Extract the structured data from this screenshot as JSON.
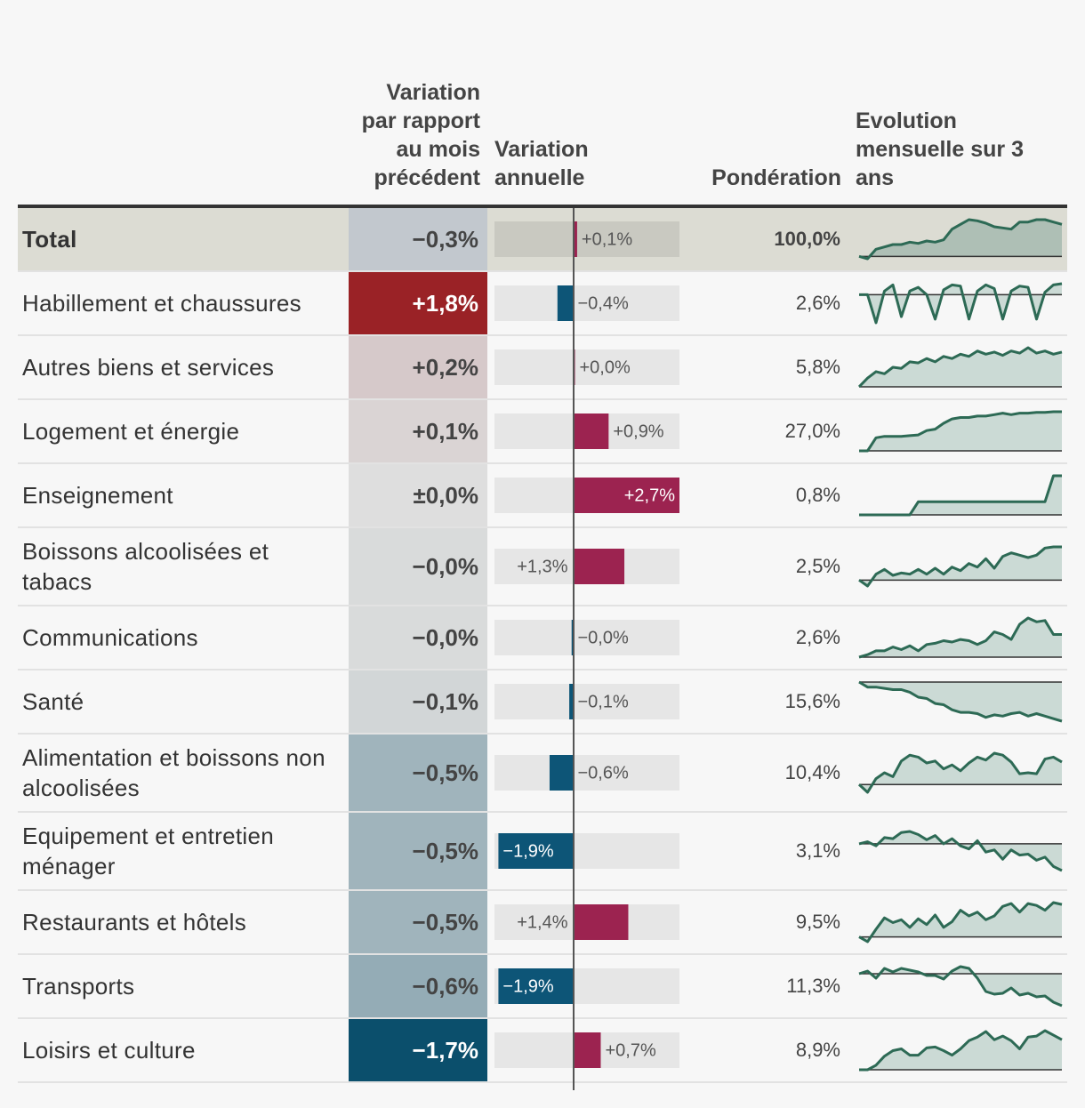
{
  "headers": {
    "monthly": "Variation par rapport au mois précédent",
    "annual": "Variation annuelle",
    "weight": "Pondération",
    "trend": "Evolution mensuelle sur 3 ans"
  },
  "annual_xlim": [
    -2,
    2.7
  ],
  "rows": [
    {
      "label": "Total",
      "monthly": -0.3,
      "monthly_label": "−0,3%",
      "annual": 0.1,
      "annual_label": "+0,1%",
      "weight": 100.0,
      "weight_label": "100,0%",
      "trend": [
        0,
        -0.2,
        0.6,
        0.8,
        1,
        1,
        1.2,
        1.1,
        1.3,
        1.2,
        1.4,
        2.3,
        2.7,
        3.1,
        3,
        2.8,
        2.5,
        2.4,
        2.3,
        2.9,
        2.9,
        3.1,
        3.1,
        2.9,
        2.7
      ]
    },
    {
      "label": "Habillement et chaussures",
      "monthly": 1.8,
      "monthly_label": "+1,8%",
      "annual": -0.4,
      "annual_label": "−0,4%",
      "weight": 2.6,
      "weight_label": "2,6%",
      "trend": [
        0,
        0,
        -2.3,
        0.3,
        0.8,
        -1.8,
        0.3,
        0.6,
        0,
        -2,
        0.4,
        0.8,
        0.7,
        -2,
        0.3,
        0.8,
        0.5,
        -2,
        0.3,
        0.7,
        0.6,
        -2,
        0.2,
        0.8,
        0.9
      ]
    },
    {
      "label": "Autres biens et services",
      "monthly": 0.2,
      "monthly_label": "+0,2%",
      "annual": 0.04,
      "annual_label": "+0,0%",
      "weight": 5.8,
      "weight_label": "5,8%",
      "trend": [
        0,
        0.8,
        1.4,
        1.2,
        1.8,
        1.7,
        2.3,
        2.2,
        2.6,
        2.3,
        2.8,
        2.6,
        3,
        2.8,
        3.3,
        3,
        3.2,
        2.9,
        3.3,
        3.1,
        3.6,
        3.1,
        3.3,
        3,
        3.2
      ]
    },
    {
      "label": "Logement et énergie",
      "monthly": 0.1,
      "monthly_label": "+0,1%",
      "annual": 0.9,
      "annual_label": "+0,9%",
      "weight": 27.0,
      "weight_label": "27,0%",
      "trend": [
        0,
        0,
        1.8,
        2,
        2,
        2,
        2.1,
        2.2,
        2.8,
        3,
        3.8,
        4.4,
        4.6,
        4.6,
        4.8,
        4.8,
        5,
        5.2,
        5,
        5.2,
        5.2,
        5.3,
        5.3,
        5.4,
        5.4
      ]
    },
    {
      "label": "Enseignement",
      "monthly": 0,
      "monthly_label": "±0,0%",
      "annual": 2.7,
      "annual_label": "+2,7%",
      "weight": 0.8,
      "weight_label": "0,8%",
      "trend": [
        0,
        0,
        0,
        0,
        0,
        0,
        0,
        1,
        1,
        1,
        1,
        1,
        1,
        1,
        1,
        1,
        1,
        1,
        1,
        1,
        1,
        1,
        1,
        3,
        3
      ]
    },
    {
      "label": "Boissons alcoolisées et tabacs",
      "monthly": -0.04,
      "monthly_label": "−0,0%",
      "annual": 1.3,
      "annual_label": "+1,3%",
      "weight": 2.5,
      "weight_label": "2,5%",
      "trend": [
        0,
        -0.5,
        0.5,
        0.9,
        0.4,
        0.6,
        0.5,
        0.9,
        0.5,
        1,
        0.5,
        1.1,
        0.8,
        1.4,
        1.1,
        1.8,
        1,
        2,
        2.3,
        2.1,
        1.9,
        2.1,
        2.7,
        2.8,
        2.8
      ]
    },
    {
      "label": "Communications",
      "monthly": -0.04,
      "monthly_label": "−0,0%",
      "annual": -0.04,
      "annual_label": "−0,0%",
      "weight": 2.6,
      "weight_label": "2,6%",
      "trend": [
        0,
        0.2,
        0.5,
        0.5,
        0.8,
        0.6,
        0.9,
        0.5,
        1,
        1.1,
        1.3,
        1.2,
        1.4,
        1.3,
        1,
        1.3,
        2,
        1.8,
        1.4,
        2.6,
        3.1,
        2.8,
        2.9,
        1.8,
        1.8
      ]
    },
    {
      "label": "Santé",
      "monthly": -0.1,
      "monthly_label": "−0,1%",
      "annual": -0.1,
      "annual_label": "−0,1%",
      "weight": 15.6,
      "weight_label": "15,6%",
      "trend": [
        0,
        -0.4,
        -0.4,
        -0.5,
        -0.6,
        -0.6,
        -0.8,
        -1.2,
        -1.3,
        -1.7,
        -1.8,
        -2.2,
        -2.4,
        -2.4,
        -2.5,
        -2.8,
        -2.6,
        -2.7,
        -2.5,
        -2.4,
        -2.7,
        -2.5,
        -2.7,
        -2.9,
        -3.1
      ]
    },
    {
      "label": "Alimentation et boissons non alcoolisées",
      "monthly": -0.5,
      "monthly_label": "−0,5%",
      "annual": -0.6,
      "annual_label": "−0,6%",
      "weight": 10.4,
      "weight_label": "10,4%",
      "trend": [
        0,
        -0.8,
        0.6,
        1.2,
        0.8,
        2.4,
        3,
        2.8,
        2.2,
        2.4,
        1.6,
        2,
        1.4,
        2.2,
        2.8,
        2.5,
        3.2,
        3,
        2.3,
        1.1,
        1.2,
        1.1,
        2.6,
        2.8,
        2.3
      ]
    },
    {
      "label": "Equipement et entretien ménager",
      "monthly": -0.5,
      "monthly_label": "−0,5%",
      "annual": -1.9,
      "annual_label": "−1,9%",
      "weight": 3.1,
      "weight_label": "3,1%",
      "trend": [
        0,
        0.2,
        -0.2,
        0.6,
        0.5,
        1.1,
        1.2,
        0.9,
        0.4,
        0.8,
        0,
        0.5,
        -0.2,
        -0.5,
        0.3,
        -0.8,
        -0.6,
        -1.5,
        -0.6,
        -1.1,
        -1,
        -1.6,
        -1.3,
        -2.2,
        -2.6
      ]
    },
    {
      "label": "Restaurants et hôtels",
      "monthly": -0.5,
      "monthly_label": "−0,5%",
      "annual": 1.4,
      "annual_label": "+1,4%",
      "weight": 9.5,
      "weight_label": "9,5%",
      "trend": [
        0,
        -0.5,
        0.8,
        2,
        1.5,
        1.8,
        1,
        1.9,
        1.3,
        2.3,
        1,
        1.6,
        2.8,
        2.2,
        2.6,
        1.8,
        2.2,
        3.2,
        3.5,
        2.6,
        3.5,
        3.3,
        2.8,
        3.6,
        3.4
      ]
    },
    {
      "label": "Transports",
      "monthly": -0.6,
      "monthly_label": "−0,6%",
      "annual": -1.9,
      "annual_label": "−1,9%",
      "weight": 11.3,
      "weight_label": "11,3%",
      "trend": [
        0,
        0.3,
        -0.5,
        0.6,
        0.2,
        0.6,
        0.4,
        0.2,
        -0.2,
        -0.2,
        -0.6,
        0.3,
        0.8,
        0.6,
        -0.5,
        -2,
        -2.3,
        -2.2,
        -1.6,
        -2.4,
        -2.2,
        -2.6,
        -2.5,
        -3.2,
        -3.6
      ]
    },
    {
      "label": "Loisirs et culture",
      "monthly": -1.7,
      "monthly_label": "−1,7%",
      "annual": 0.7,
      "annual_label": "+0,7%",
      "weight": 8.9,
      "weight_label": "8,9%",
      "trend": [
        0,
        0,
        0.5,
        1.5,
        2.1,
        2.3,
        1.6,
        1.6,
        2.4,
        2.5,
        2.1,
        1.6,
        2.3,
        3.2,
        3.6,
        4.2,
        3.3,
        3.7,
        3.2,
        2.3,
        3.6,
        3.7,
        4.3,
        3.8,
        3.3
      ]
    }
  ]
}
